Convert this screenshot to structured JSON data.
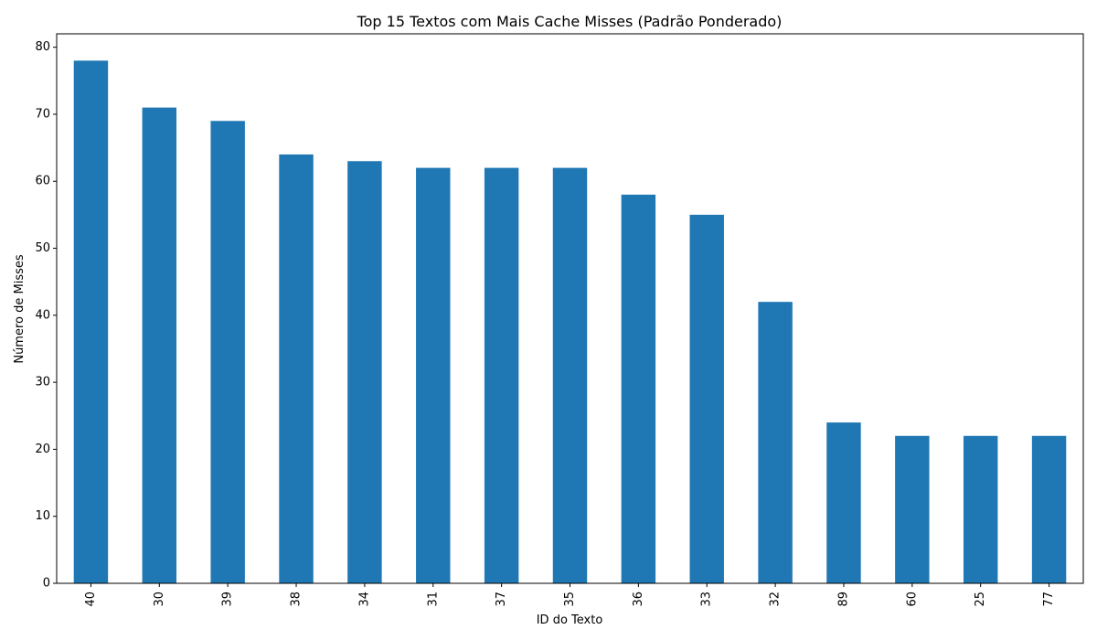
{
  "chart_data": {
    "type": "bar",
    "title": "Top 15 Textos com Mais Cache Misses (Padrão Ponderado)",
    "xlabel": "ID do Texto",
    "ylabel": "Número de Misses",
    "categories": [
      "40",
      "30",
      "39",
      "38",
      "34",
      "31",
      "37",
      "35",
      "36",
      "33",
      "32",
      "89",
      "60",
      "25",
      "77"
    ],
    "values": [
      78,
      71,
      69,
      64,
      63,
      62,
      62,
      62,
      58,
      55,
      42,
      24,
      22,
      22,
      22
    ],
    "ylim": [
      0,
      82
    ],
    "yticks": [
      0,
      10,
      20,
      30,
      40,
      50,
      60,
      70,
      80
    ],
    "bar_color": "#1f77b4",
    "grid": false,
    "legend": "none"
  }
}
